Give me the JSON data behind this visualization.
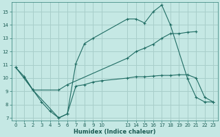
{
  "xlabel": "Humidex (Indice chaleur)",
  "bg_color": "#c5e8e4",
  "grid_color": "#a8ceca",
  "line_color": "#1e6b62",
  "xlim": [
    -0.5,
    23.5
  ],
  "ylim": [
    6.8,
    15.7
  ],
  "yticks": [
    7,
    8,
    9,
    10,
    11,
    12,
    13,
    14,
    15
  ],
  "xticks": [
    0,
    1,
    2,
    3,
    4,
    5,
    6,
    7,
    8,
    9,
    10,
    13,
    14,
    15,
    16,
    17,
    18,
    19,
    20,
    21,
    22,
    23
  ],
  "line1_x": [
    0,
    1,
    2,
    3,
    4,
    5,
    6,
    7,
    8,
    9,
    10,
    13,
    14,
    15,
    16,
    17,
    18,
    19,
    20,
    21,
    22,
    23
  ],
  "line1_y": [
    10.8,
    10.1,
    9.1,
    8.2,
    7.5,
    7.0,
    7.3,
    9.4,
    9.5,
    9.7,
    9.8,
    10.0,
    10.1,
    10.1,
    10.15,
    10.2,
    10.2,
    10.25,
    10.25,
    10.0,
    8.55,
    8.2
  ],
  "line2_x": [
    0,
    2,
    5,
    6,
    7,
    8,
    9,
    13,
    14,
    15,
    16,
    17,
    18,
    20,
    21,
    22,
    23
  ],
  "line2_y": [
    10.8,
    9.1,
    7.0,
    7.3,
    11.1,
    12.6,
    13.0,
    14.45,
    14.45,
    14.15,
    15.0,
    15.5,
    14.0,
    9.95,
    8.55,
    8.2,
    8.2
  ],
  "line3_x": [
    1,
    2,
    5,
    6,
    13,
    14,
    15,
    16,
    17,
    18,
    19,
    20,
    21
  ],
  "line3_y": [
    10.1,
    9.1,
    9.1,
    9.5,
    11.5,
    12.0,
    12.25,
    12.55,
    13.0,
    13.35,
    13.35,
    13.45,
    13.5
  ]
}
